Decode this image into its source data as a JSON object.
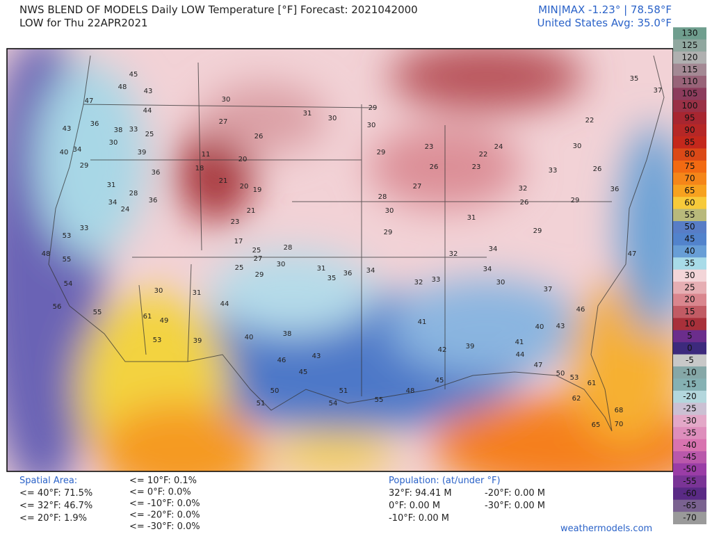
{
  "header": {
    "title": "NWS BLEND OF MODELS Daily LOW Temperature [°F] Forecast: 2021042000",
    "subtitle": "LOW for Thu 22APR2021",
    "minmax": "MIN|MAX -1.23° | 78.58°F",
    "average": "United States Avg: 35.0°F"
  },
  "colorbar": {
    "ticks": [
      130,
      125,
      120,
      115,
      110,
      105,
      100,
      95,
      90,
      85,
      80,
      75,
      70,
      65,
      60,
      55,
      50,
      45,
      40,
      35,
      30,
      25,
      20,
      15,
      10,
      5,
      0,
      -5,
      -10,
      -15,
      -20,
      -25,
      -30,
      -35,
      -40,
      -45,
      -50,
      -55,
      -60,
      -65,
      -70
    ]
  },
  "stations": [
    45,
    48,
    43,
    47,
    44,
    43,
    36,
    38,
    33,
    30,
    25,
    34,
    40,
    29,
    39,
    36,
    31,
    28,
    34,
    24,
    36,
    33,
    53,
    48,
    55,
    54,
    56,
    55,
    61,
    49,
    53,
    30,
    31,
    39,
    44,
    40,
    38,
    43,
    46,
    45,
    50,
    51,
    54,
    51,
    55,
    48,
    45,
    41,
    42,
    39,
    41,
    44,
    47,
    50,
    53,
    61,
    68,
    70,
    65,
    62,
    40,
    43,
    46,
    37,
    34,
    33,
    32,
    34,
    36,
    35,
    31,
    28,
    27,
    25,
    29,
    30,
    30,
    27,
    26,
    31,
    30,
    29,
    30,
    29,
    23,
    24,
    22,
    23,
    26,
    27,
    28,
    30,
    29,
    32,
    31,
    34,
    30,
    33,
    30,
    26,
    36,
    47,
    35,
    22,
    37,
    29,
    26,
    29,
    32,
    11,
    18,
    20,
    21,
    20,
    19,
    21,
    23,
    17,
    25
  ],
  "spatial": {
    "heading": "Spatial Area:",
    "col1": [
      "<= 40°F: 71.5%",
      "<= 32°F: 46.7%",
      "<= 20°F: 1.9%"
    ],
    "col2": [
      "<= 10°F: 0.1%",
      "<= 0°F: 0.0%",
      "<= -10°F: 0.0%",
      "<= -20°F: 0.0%",
      "<= -30°F: 0.0%"
    ]
  },
  "population": {
    "heading": "Population: (at/under °F)",
    "col1": [
      "32°F: 94.41 M",
      "0°F: 0.00 M",
      "-10°F: 0.00 M"
    ],
    "col2": [
      "-20°F: 0.00 M",
      "-30°F: 0.00 M"
    ]
  },
  "brand": "weathermodels.com"
}
